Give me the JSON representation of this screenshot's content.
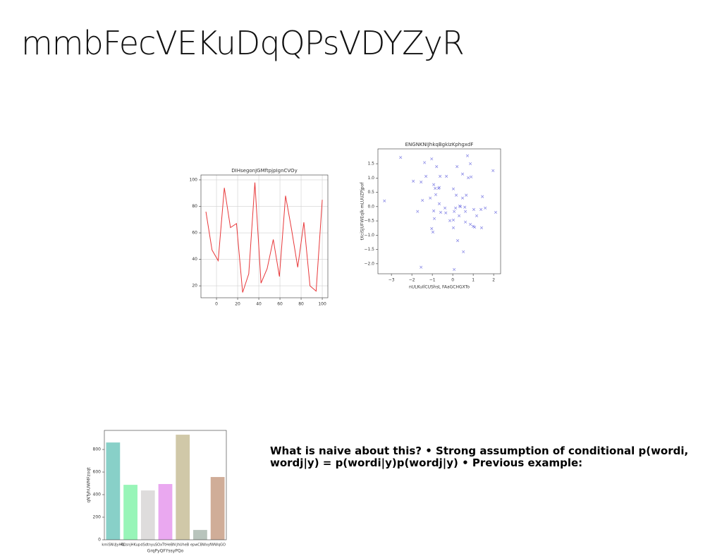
{
  "title": "mmbFecVEKuDqQPsVDYZyR",
  "text": "What is naive about this? • Strong assumption of conditional p(wordi, wordj|y) = p(wordi|y)p(wordj|y) • Previous example:",
  "chart_data": [
    {
      "type": "line",
      "title": "DIHsegonJGMftpjpIgnCVOy",
      "color": "#e8383a",
      "grid": true,
      "x": [
        -10,
        -4.2,
        1.6,
        7.4,
        13.2,
        18.9,
        24.7,
        30.5,
        36.3,
        42.1,
        47.9,
        53.7,
        59.5,
        65.3,
        71.1,
        76.8,
        82.6,
        88.4,
        94.2,
        100
      ],
      "values": [
        76,
        47,
        39,
        94,
        64,
        67,
        15,
        29,
        98,
        22,
        33,
        55,
        27,
        88,
        62,
        34,
        68,
        20,
        16,
        85
      ],
      "xlim": [
        -14.7,
        105.3
      ],
      "xticks": [
        0,
        20,
        40,
        60,
        80,
        100
      ],
      "ylim": [
        11,
        103.7
      ],
      "yticks": [
        20,
        40,
        60,
        80,
        100
      ]
    },
    {
      "type": "scatter",
      "title": "ENGNKNIJhkqBgkIzKphgxdF",
      "xlabel": "nULKuIlCUShsL FAaGCHGXTo",
      "ylabel": "tXciSJUFWEqlk mLUUZPjpof",
      "color": "#6a6adf",
      "grid": false,
      "x": [
        -2.55,
        -1.03,
        0.72,
        -1.38,
        -0.79,
        0.21,
        0.86,
        1.97,
        -1.31,
        -0.31,
        -0.62,
        0.48,
        0.76,
        0.9,
        -1.93,
        -1.55,
        -0.93,
        -0.86,
        -0.69,
        -0.66,
        0.03,
        -0.83,
        0.17,
        -1.48,
        -1.1,
        0.66,
        0.48,
        1.45,
        -3.34,
        -0.66,
        0.34,
        0.38,
        0.14,
        -0.38,
        0.59,
        1.03,
        1.59,
        1.38,
        -1.72,
        -0.93,
        -0.59,
        -0.34,
        0.07,
        0.62,
        2.1,
        0.31,
        1.17,
        -0.9,
        -0.14,
        0.03,
        0.62,
        0.86,
        1.0,
        -1.03,
        0.03,
        1.41,
        1.07,
        -0.97,
        0.24,
        0.52,
        -1.55,
        0.07
      ],
      "values": [
        1.72,
        1.67,
        1.78,
        1.54,
        1.4,
        1.4,
        1.5,
        1.26,
        1.06,
        1.06,
        1.06,
        1.14,
        1.01,
        1.04,
        0.89,
        0.86,
        0.77,
        0.64,
        0.64,
        0.67,
        0.62,
        0.42,
        0.4,
        0.22,
        0.3,
        0.4,
        0.3,
        0.35,
        0.2,
        0.1,
        0.02,
        0.0,
        -0.05,
        -0.05,
        -0.02,
        -0.1,
        -0.05,
        -0.1,
        -0.17,
        -0.15,
        -0.2,
        -0.22,
        -0.17,
        -0.17,
        -0.2,
        -0.32,
        -0.32,
        -0.42,
        -0.49,
        -0.47,
        -0.54,
        -0.62,
        -0.69,
        -0.77,
        -0.74,
        -0.74,
        -0.72,
        -0.89,
        -1.19,
        -1.58,
        -2.12,
        -2.2
      ],
      "xlim": [
        -3.66,
        2.34
      ],
      "xticks": [
        {
          "value": -3,
          "label": "−3"
        },
        {
          "value": -2,
          "label": "−2"
        },
        {
          "value": -1,
          "label": "−1"
        },
        0,
        1,
        2
      ],
      "ylim": [
        -2.35,
        2.02
      ],
      "yticks": [
        {
          "value": -2,
          "label": "−2.0"
        },
        {
          "value": -1.5,
          "label": "−1.5"
        },
        {
          "value": -1,
          "label": "−1.0"
        },
        {
          "value": -0.5,
          "label": "−0.5"
        },
        {
          "value": 0,
          "label": "0.0"
        },
        0.5,
        {
          "value": 1,
          "label": "1.0"
        },
        1.5
      ]
    },
    {
      "type": "bar",
      "xlabel": "GrqPyQFYssyPQo",
      "ylabel": "qNTyhUWMFzoqt",
      "grid": false,
      "categories": [
        "kmiSNUJyHQ",
        "RQsnjHKup",
        "dSdtnyu",
        "SOxTtHeBN",
        "JhUheB",
        "epwCBWxy",
        "fWWqGO"
      ],
      "values": [
        862,
        487,
        437,
        494,
        931,
        87,
        556
      ],
      "colors": [
        "#88d0c8",
        "#98f5b8",
        "#dedcdc",
        "#eaa8f0",
        "#d0c8a8",
        "#b8c4bc",
        "#d0ad98"
      ],
      "ylim": [
        0,
        969
      ],
      "yticks": [
        0,
        200,
        400,
        600,
        800
      ]
    }
  ]
}
